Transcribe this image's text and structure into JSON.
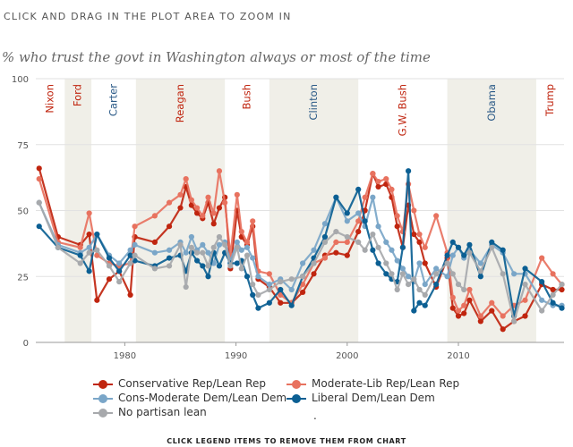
{
  "header": {
    "instruction": "CLICK AND DRAG IN THE PLOT AREA TO ZOOM IN",
    "subtitle": "% who trust the govt in Washington always or most of the time"
  },
  "footer": {
    "instruction": "CLICK LEGEND ITEMS TO REMOVE THEM FROM CHART",
    "legend_dot": "."
  },
  "chart_data": {
    "type": "line",
    "title": "% who trust the govt in Washington always or most of the time",
    "xlabel": "",
    "ylabel": "",
    "xlim": [
      1972,
      2019.5
    ],
    "ylim": [
      0,
      100
    ],
    "x_ticks": [
      1980,
      1990,
      2000,
      2010
    ],
    "y_ticks": [
      0,
      25,
      50,
      75,
      100
    ],
    "grid": "horizontal",
    "legend_position": "bottom",
    "eras": [
      {
        "label": "Nixon",
        "start": 1972,
        "end": 1974.6,
        "party": "R",
        "shaded": false
      },
      {
        "label": "Ford",
        "start": 1974.6,
        "end": 1977,
        "party": "R",
        "shaded": true
      },
      {
        "label": "Carter",
        "start": 1977,
        "end": 1981,
        "party": "D",
        "shaded": false
      },
      {
        "label": "Reagan",
        "start": 1981,
        "end": 1989,
        "party": "R",
        "shaded": true
      },
      {
        "label": "Bush",
        "start": 1989,
        "end": 1993,
        "party": "R",
        "shaded": false
      },
      {
        "label": "Clinton",
        "start": 1993,
        "end": 2001,
        "party": "D",
        "shaded": true
      },
      {
        "label": "G.W. Bush",
        "start": 2001,
        "end": 2009,
        "party": "R",
        "shaded": false
      },
      {
        "label": "Obama",
        "start": 2009,
        "end": 2017,
        "party": "D",
        "shaded": true
      },
      {
        "label": "Trump",
        "start": 2017,
        "end": 2019.5,
        "party": "R",
        "shaded": false
      }
    ],
    "series": [
      {
        "name": "Conservative Rep/Lean Rep",
        "color": "#c0250f",
        "x": [
          1972.3,
          1974,
          1976,
          1976.8,
          1977.5,
          1978.6,
          1979.5,
          1980.5,
          1980.9,
          1982.7,
          1984,
          1985,
          1985.5,
          1986,
          1986.5,
          1987,
          1987.5,
          1988,
          1988.5,
          1989,
          1989.5,
          1990.1,
          1990.5,
          1991,
          1991.5,
          1992,
          1993,
          1994,
          1995,
          1996,
          1997,
          1998,
          1999,
          2000,
          2001,
          2001.6,
          2002.3,
          2002.8,
          2003.5,
          2004,
          2004.5,
          2005,
          2005.5,
          2006,
          2006.5,
          2007,
          2008,
          2009,
          2009.5,
          2010,
          2010.5,
          2011,
          2012,
          2013,
          2014,
          2015,
          2016,
          2017.5,
          2018.5,
          2019.3
        ],
        "values": [
          66,
          40,
          37,
          41,
          16,
          24,
          27,
          18,
          40,
          38,
          44,
          51,
          59,
          52,
          49,
          47,
          53,
          45,
          51,
          55,
          28,
          50,
          40,
          37,
          44,
          24,
          21,
          15,
          15,
          19,
          26,
          33,
          34,
          33,
          42,
          50,
          64,
          59,
          60,
          55,
          44,
          36,
          52,
          41,
          38,
          30,
          21,
          32,
          13,
          10,
          11,
          16,
          8,
          12,
          5,
          8,
          10,
          22,
          20,
          20
        ]
      },
      {
        "name": "Moderate-Lib Rep/Lean Rep",
        "color": "#e8725f",
        "x": [
          1972.3,
          1974,
          1976,
          1976.8,
          1977.5,
          1978.6,
          1979.5,
          1980.5,
          1980.9,
          1982.7,
          1984,
          1985,
          1985.5,
          1986,
          1986.5,
          1987,
          1987.5,
          1988,
          1988.5,
          1989,
          1989.5,
          1990.1,
          1990.5,
          1991,
          1991.5,
          1992,
          1993,
          1994,
          1995,
          1996,
          1997,
          1998,
          1999,
          2000,
          2001,
          2001.6,
          2002.3,
          2002.8,
          2003.5,
          2004,
          2004.5,
          2005,
          2005.5,
          2006,
          2006.5,
          2007,
          2008,
          2009,
          2009.5,
          2010,
          2010.5,
          2011,
          2012,
          2013,
          2014,
          2015,
          2016,
          2017.5,
          2018.5,
          2019.3
        ],
        "values": [
          62,
          38,
          36,
          49,
          33,
          30,
          29,
          30,
          44,
          48,
          53,
          56,
          62,
          54,
          51,
          48,
          55,
          49,
          65,
          53,
          33,
          56,
          42,
          38,
          46,
          27,
          26,
          18,
          15,
          22,
          30,
          32,
          38,
          38,
          46,
          55,
          64,
          61,
          62,
          58,
          48,
          42,
          60,
          50,
          41,
          36,
          48,
          34,
          17,
          12,
          14,
          20,
          10,
          15,
          10,
          14,
          16,
          32,
          26,
          22
        ]
      },
      {
        "name": "Cons-Moderate Dem/Lean Dem",
        "color": "#7aa6c8",
        "x": [
          1972.3,
          1974,
          1976,
          1976.8,
          1977.5,
          1978.6,
          1979.5,
          1980.5,
          1980.9,
          1982.7,
          1984,
          1985,
          1985.5,
          1986,
          1986.5,
          1987,
          1987.5,
          1988,
          1988.5,
          1989,
          1989.5,
          1990.1,
          1990.5,
          1991,
          1991.5,
          1992,
          1993,
          1994,
          1995,
          1996,
          1997,
          1998,
          1999,
          2000,
          2001,
          2001.6,
          2002.3,
          2002.8,
          2003.5,
          2004,
          2004.5,
          2005,
          2005.5,
          2006,
          2006.5,
          2007,
          2008,
          2009,
          2009.5,
          2010,
          2010.5,
          2011,
          2012,
          2013,
          2014,
          2015,
          2016,
          2017.5,
          2018.5,
          2019.3
        ],
        "values": [
          53,
          37,
          34,
          36,
          41,
          33,
          30,
          35,
          37,
          34,
          35,
          38,
          34,
          40,
          35,
          37,
          34,
          30,
          37,
          38,
          31,
          38,
          35,
          36,
          32,
          25,
          22,
          24,
          20,
          30,
          35,
          45,
          55,
          46,
          49,
          44,
          55,
          44,
          38,
          35,
          31,
          28,
          25,
          23,
          30,
          22,
          28,
          25,
          33,
          36,
          32,
          35,
          30,
          37,
          34,
          26,
          26,
          16,
          14,
          14
        ]
      },
      {
        "name": "Liberal Dem/Lean Dem",
        "color": "#0b5f93",
        "x": [
          1972.3,
          1974,
          1976,
          1976.8,
          1977.5,
          1978.6,
          1979.5,
          1980.5,
          1980.9,
          1982.7,
          1984,
          1985,
          1985.5,
          1986,
          1986.5,
          1987,
          1987.5,
          1988,
          1988.5,
          1989,
          1989.5,
          1990.1,
          1990.5,
          1991,
          1991.5,
          1992,
          1993,
          1994,
          1995,
          1996,
          1997,
          1998,
          1999,
          2000,
          2001,
          2001.6,
          2002.3,
          2002.8,
          2003.5,
          2004,
          2004.5,
          2005,
          2005.5,
          2006,
          2006.5,
          2007,
          2008,
          2009,
          2009.5,
          2010,
          2010.5,
          2011,
          2012,
          2013,
          2014,
          2015,
          2016,
          2017.5,
          2018.5,
          2019.3
        ],
        "values": [
          44,
          36,
          33,
          27,
          41,
          32,
          27,
          33,
          31,
          29,
          32,
          33,
          27,
          34,
          31,
          29,
          25,
          34,
          29,
          34,
          30,
          30,
          31,
          25,
          18,
          13,
          15,
          20,
          14,
          25,
          32,
          40,
          55,
          49,
          58,
          46,
          35,
          30,
          26,
          24,
          23,
          36,
          65,
          12,
          15,
          14,
          22,
          33,
          38,
          36,
          33,
          37,
          25,
          38,
          35,
          10,
          28,
          23,
          15,
          13
        ]
      },
      {
        "name": "No partisan lean",
        "color": "#a7a9ac",
        "x": [
          1972.3,
          1974,
          1976,
          1976.8,
          1977.5,
          1978.6,
          1979.5,
          1980.5,
          1980.9,
          1982.7,
          1984,
          1985,
          1985.5,
          1986,
          1986.5,
          1987,
          1987.5,
          1988,
          1988.5,
          1989,
          1989.5,
          1990.1,
          1990.5,
          1991,
          1991.5,
          1992,
          1993,
          1994,
          1995,
          1996,
          1997,
          1998,
          1999,
          2000,
          2001,
          2001.6,
          2002.3,
          2002.8,
          2003.5,
          2004,
          2004.5,
          2005,
          2005.5,
          2006,
          2006.5,
          2007,
          2008,
          2009,
          2009.5,
          2010,
          2010.5,
          2011,
          2012,
          2013,
          2014,
          2015,
          2016,
          2017.5,
          2018.5,
          2019.3
        ],
        "values": [
          53,
          36,
          30,
          34,
          35,
          29,
          23,
          30,
          33,
          28,
          29,
          37,
          21,
          36,
          34,
          34,
          29,
          36,
          40,
          37,
          29,
          36,
          28,
          33,
          22,
          18,
          20,
          23,
          24,
          25,
          30,
          38,
          42,
          40,
          38,
          35,
          41,
          36,
          30,
          26,
          20,
          26,
          22,
          24,
          20,
          18,
          26,
          30,
          26,
          22,
          20,
          34,
          27,
          36,
          26,
          8,
          22,
          12,
          18,
          22
        ]
      }
    ]
  },
  "legend": {
    "items": [
      {
        "label": "Conservative Rep/Lean Rep",
        "color": "#c0250f"
      },
      {
        "label": "Moderate-Lib Rep/Lean Rep",
        "color": "#e8725f"
      },
      {
        "label": "Cons-Moderate Dem/Lean Dem",
        "color": "#7aa6c8"
      },
      {
        "label": "Liberal Dem/Lean Dem",
        "color": "#0b5f93"
      },
      {
        "label": "No partisan lean",
        "color": "#a7a9ac"
      }
    ]
  }
}
